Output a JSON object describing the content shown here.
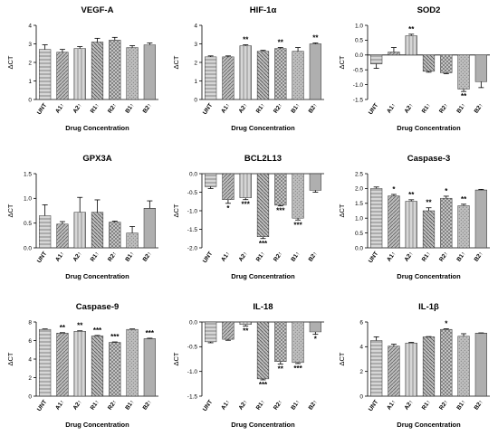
{
  "figure": {
    "categories": [
      "UNT",
      "A1↑",
      "A2↑",
      "R1↑",
      "R2↑",
      "B1↑",
      "B2↑"
    ]
  },
  "chart_data": [
    {
      "type": "bar",
      "title": "VEGF-A",
      "xlabel": "Drug Concentration",
      "ylabel": "ΔCT",
      "categories": [
        "UNT",
        "A1↑",
        "A2↑",
        "R1↑",
        "R2↑",
        "B1↑",
        "B2↑"
      ],
      "values": [
        2.7,
        2.55,
        2.75,
        3.1,
        3.2,
        2.8,
        2.95
      ],
      "errors": [
        0.25,
        0.15,
        0.1,
        0.2,
        0.15,
        0.1,
        0.1
      ],
      "significance": [
        "",
        "",
        "",
        "",
        "",
        "",
        ""
      ],
      "ylim": [
        0,
        4
      ],
      "yticks": [
        0,
        1,
        2,
        3,
        4
      ],
      "grid": false
    },
    {
      "type": "bar",
      "title": "HIF-1α",
      "xlabel": "Drug Concentration",
      "ylabel": "ΔCT",
      "categories": [
        "UNT",
        "A1↑",
        "A2↑",
        "R1↑",
        "R2↑",
        "B1↑",
        "B2↑"
      ],
      "values": [
        2.3,
        2.3,
        2.9,
        2.6,
        2.75,
        2.6,
        3.0
      ],
      "errors": [
        0.05,
        0.05,
        0.05,
        0.05,
        0.05,
        0.2,
        0.05
      ],
      "significance": [
        "",
        "",
        "**",
        "",
        "**",
        "",
        "**"
      ],
      "ylim": [
        0,
        4
      ],
      "yticks": [
        0,
        1,
        2,
        3,
        4
      ],
      "grid": false
    },
    {
      "type": "bar",
      "title": "SOD2",
      "xlabel": "Drug Concentration",
      "ylabel": "ΔCT",
      "categories": [
        "UNT",
        "A1↑",
        "A2↑",
        "R1↑",
        "R2↑",
        "B1↑",
        "B2↑"
      ],
      "values": [
        -0.3,
        0.1,
        0.65,
        -0.55,
        -0.6,
        -1.15,
        -0.9
      ],
      "errors": [
        0.15,
        0.15,
        0.05,
        0.03,
        0.03,
        0.08,
        0.2
      ],
      "significance": [
        "",
        "",
        "**",
        "",
        "",
        "**",
        ""
      ],
      "ylim": [
        -1.5,
        1.0
      ],
      "yticks": [
        -1.5,
        -1.0,
        -0.5,
        0.0,
        0.5,
        1.0
      ],
      "grid": false
    },
    {
      "type": "bar",
      "title": "GPX3A",
      "xlabel": "Drug Concentration",
      "ylabel": "ΔCT",
      "categories": [
        "UNT",
        "A1↑",
        "A2↑",
        "R1↑",
        "R2↑",
        "B1↑",
        "B2↑"
      ],
      "values": [
        0.65,
        0.48,
        0.72,
        0.72,
        0.52,
        0.3,
        0.8
      ],
      "errors": [
        0.22,
        0.05,
        0.3,
        0.25,
        0.02,
        0.13,
        0.15
      ],
      "significance": [
        "",
        "",
        "",
        "",
        "",
        "",
        ""
      ],
      "ylim": [
        0,
        1.5
      ],
      "yticks": [
        0.0,
        0.5,
        1.0,
        1.5
      ],
      "grid": false
    },
    {
      "type": "bar",
      "title": "BCL2L13",
      "xlabel": "Drug Concentration",
      "ylabel": "ΔCT",
      "categories": [
        "UNT",
        "A1↑",
        "A2↑",
        "R1↑",
        "R2↑",
        "B1↑",
        "B2↑"
      ],
      "values": [
        -0.35,
        -0.7,
        -0.65,
        -1.7,
        -0.85,
        -1.2,
        -0.45
      ],
      "errors": [
        0.05,
        0.1,
        0.05,
        0.05,
        0.02,
        0.05,
        0.05
      ],
      "significance": [
        "",
        "*",
        "***",
        "***",
        "***",
        "***",
        ""
      ],
      "ylim": [
        -2.0,
        0.0
      ],
      "yticks": [
        -2.0,
        -1.5,
        -1.0,
        -0.5,
        0.0
      ],
      "grid": false
    },
    {
      "type": "bar",
      "title": "Caspase-3",
      "xlabel": "Drug Concentration",
      "ylabel": "ΔCT",
      "categories": [
        "UNT",
        "A1↑",
        "A2↑",
        "R1↑",
        "R2↑",
        "B1↑",
        "B2↑"
      ],
      "values": [
        2.0,
        1.75,
        1.57,
        1.25,
        1.67,
        1.42,
        1.95
      ],
      "errors": [
        0.05,
        0.05,
        0.05,
        0.1,
        0.07,
        0.05,
        0.02
      ],
      "significance": [
        "",
        "*",
        "**",
        "**",
        "*",
        "**",
        ""
      ],
      "ylim": [
        0,
        2.5
      ],
      "yticks": [
        0.0,
        0.5,
        1.0,
        1.5,
        2.0,
        2.5
      ],
      "grid": false
    },
    {
      "type": "bar",
      "title": "Caspase-9",
      "xlabel": "Drug Concentration",
      "ylabel": "ΔCT",
      "categories": [
        "UNT",
        "A1↑",
        "A2↑",
        "R1↑",
        "R2↑",
        "B1↑",
        "B2↑"
      ],
      "values": [
        7.2,
        6.8,
        7.0,
        6.5,
        5.8,
        7.2,
        6.2
      ],
      "errors": [
        0.05,
        0.05,
        0.05,
        0.05,
        0.05,
        0.05,
        0.05
      ],
      "significance": [
        "",
        "**",
        "**",
        "***",
        "***",
        "",
        "***"
      ],
      "ylim": [
        0,
        8
      ],
      "yticks": [
        0,
        2,
        4,
        6,
        8
      ],
      "grid": false
    },
    {
      "type": "bar",
      "title": "IL-18",
      "xlabel": "Drug Concentration",
      "ylabel": "ΔCT",
      "categories": [
        "UNT",
        "A1↑",
        "A2↑",
        "R1↑",
        "R2↑",
        "B1↑",
        "B2↑"
      ],
      "values": [
        -0.4,
        -0.35,
        -0.05,
        -1.15,
        -0.8,
        -0.82,
        -0.2
      ],
      "errors": [
        0.02,
        0.02,
        0.03,
        0.02,
        0.05,
        0.02,
        0.05
      ],
      "significance": [
        "",
        "",
        "**",
        "***",
        "**",
        "***",
        "*"
      ],
      "ylim": [
        -1.5,
        0.0
      ],
      "yticks": [
        -1.5,
        -1.0,
        -0.5,
        0.0
      ],
      "grid": false
    },
    {
      "type": "bar",
      "title": "IL-1β",
      "xlabel": "Drug Concentration",
      "ylabel": "ΔCT",
      "categories": [
        "UNT",
        "A1↑",
        "A2↑",
        "R1↑",
        "R2↑",
        "B1↑",
        "B2↑"
      ],
      "values": [
        4.5,
        4.05,
        4.3,
        4.8,
        5.4,
        4.85,
        5.1
      ],
      "errors": [
        0.3,
        0.15,
        0.05,
        0.02,
        0.05,
        0.2,
        0.02
      ],
      "significance": [
        "",
        "",
        "",
        "",
        "*",
        "",
        ""
      ],
      "ylim": [
        0,
        6
      ],
      "yticks": [
        0,
        2,
        4,
        6
      ],
      "grid": false
    }
  ],
  "colors": {
    "axis": "#000000",
    "bar_dark": "#6e6e6e",
    "bar_mid": "#9a9a9a",
    "bar_light": "#c8c8c8"
  }
}
